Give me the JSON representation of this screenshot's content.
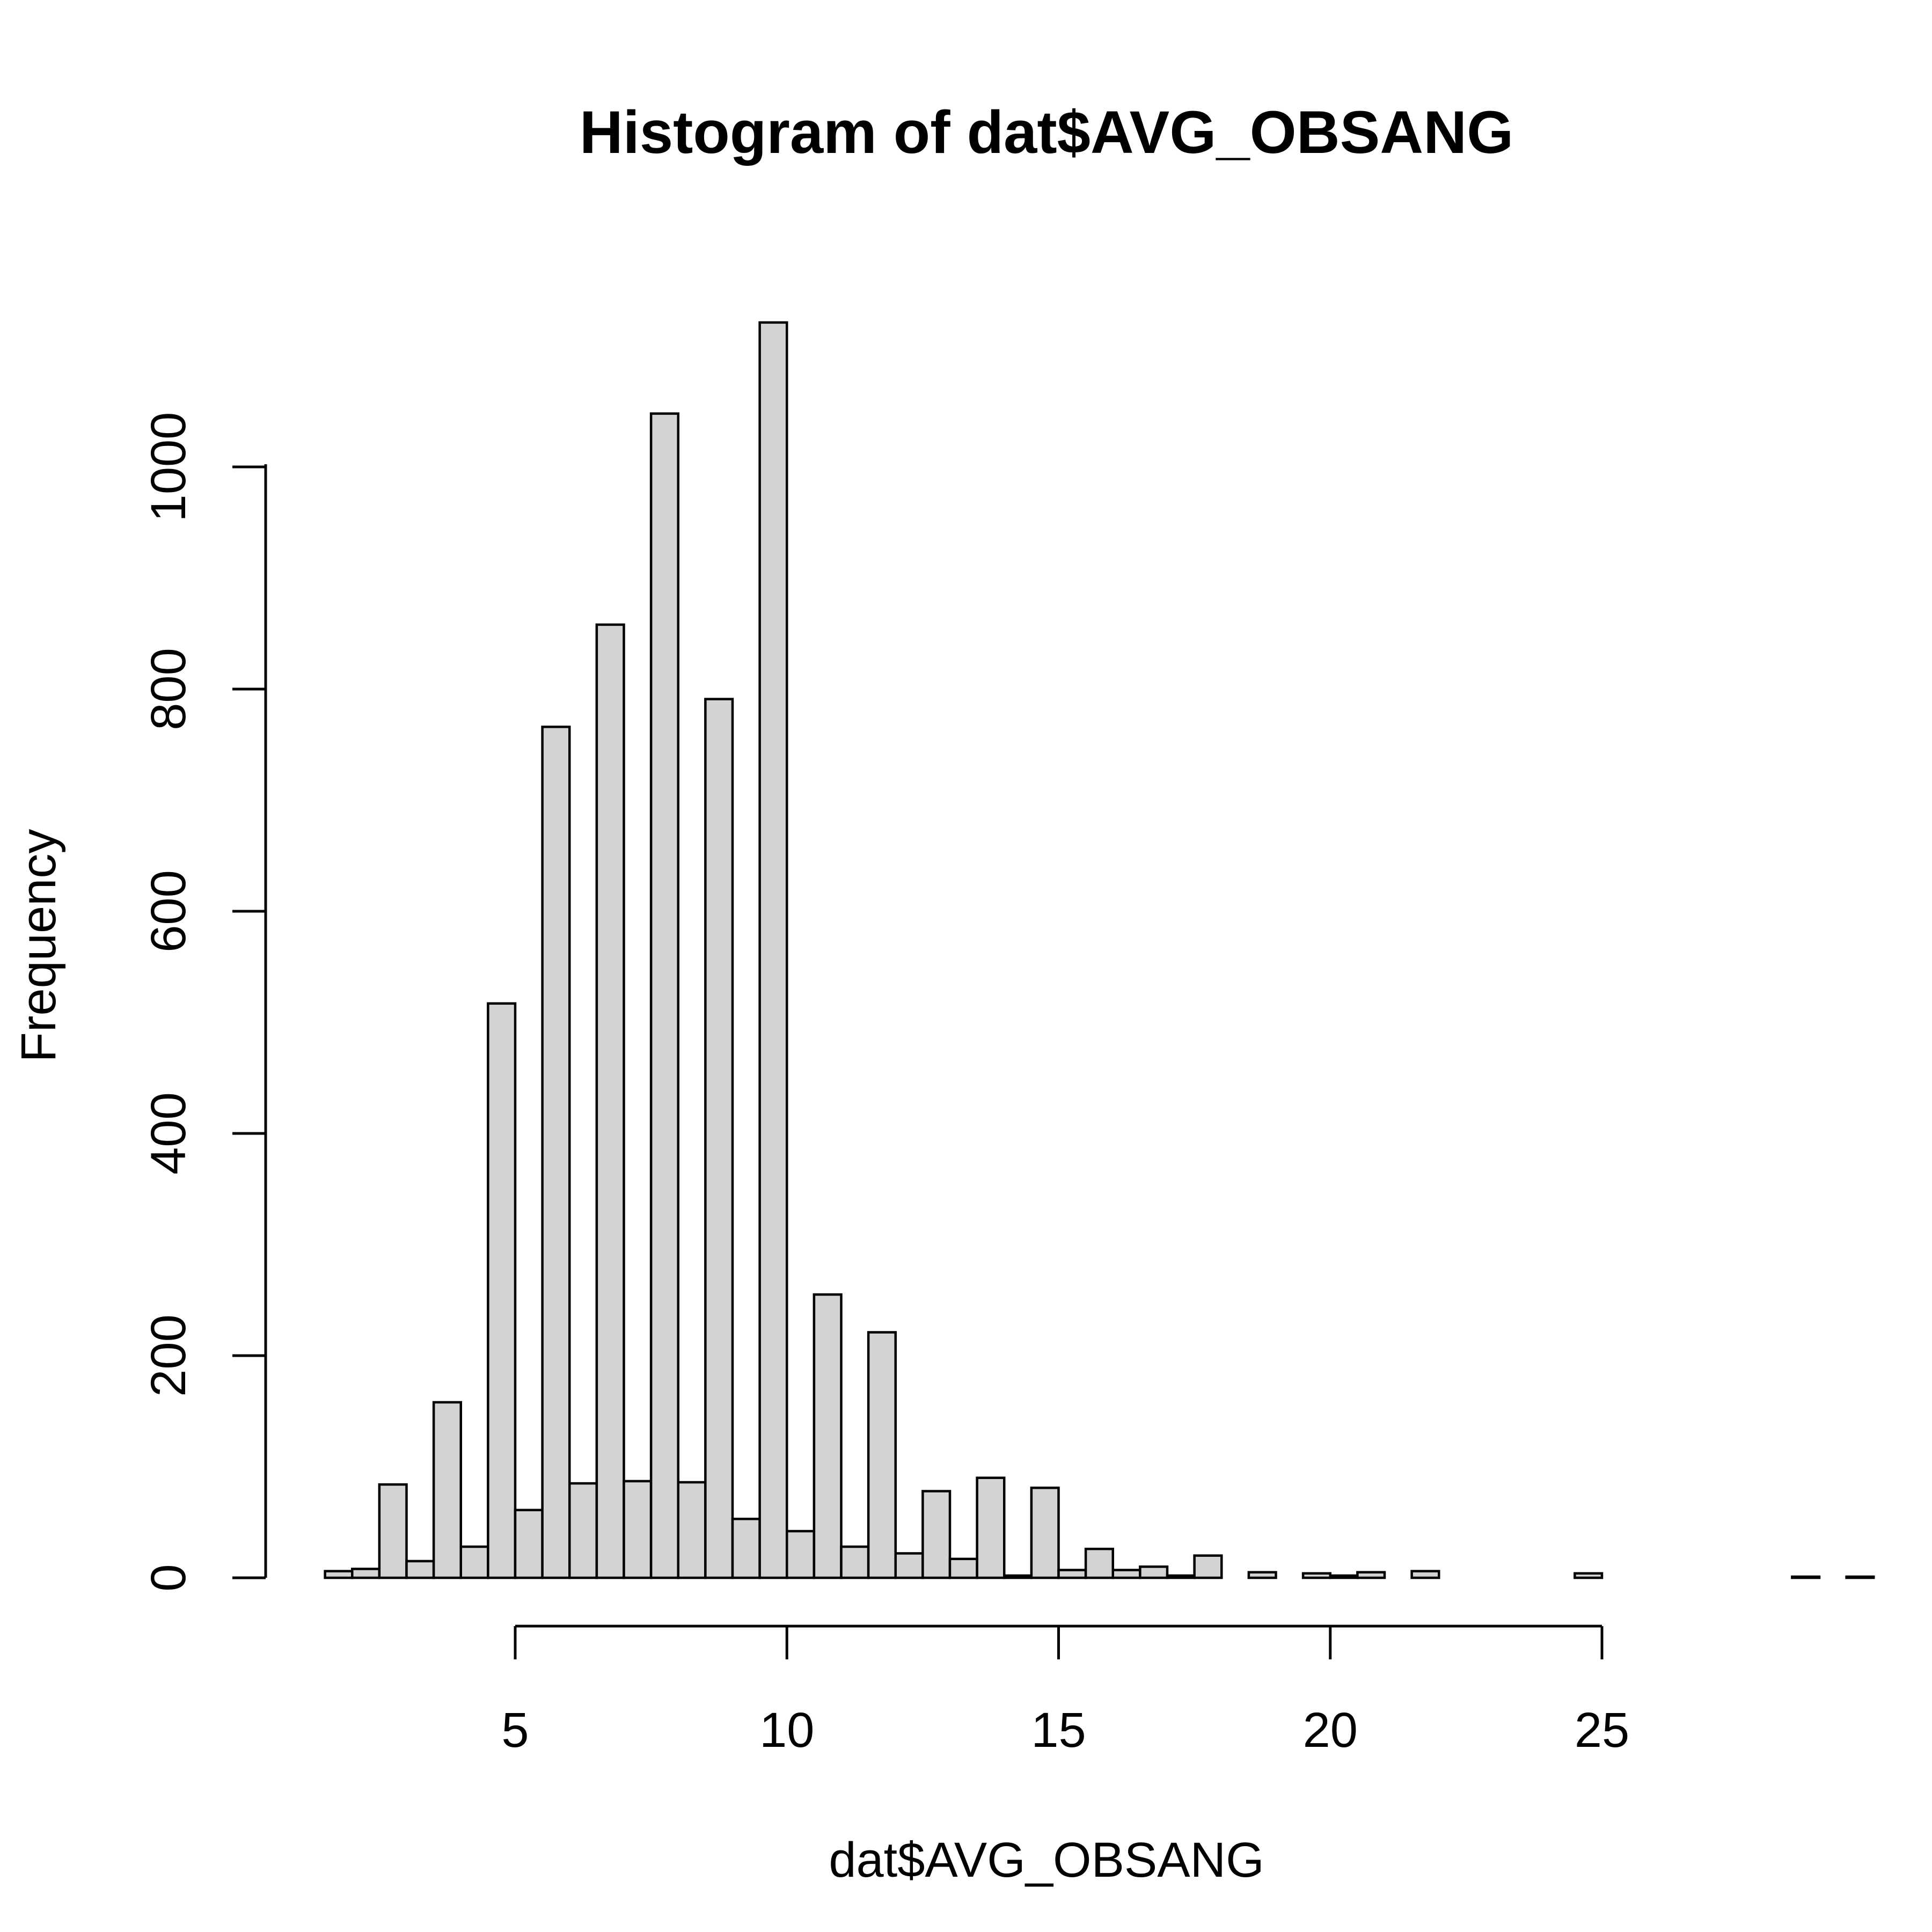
{
  "chart_data": {
    "type": "bar",
    "title": "Histogram of dat$AVG_OBSANG",
    "xlabel": "dat$AVG_OBSANG",
    "ylabel": "Frequency",
    "bin_width": 0.5,
    "bin_edges_start": 1.5,
    "x_axis_range": [
      5,
      25
    ],
    "x_ticks": [
      5,
      10,
      15,
      20,
      25
    ],
    "y_ticks": [
      0,
      200,
      400,
      600,
      800,
      1000
    ],
    "ylim": [
      0,
      1130
    ],
    "grid": false,
    "bar_fill": "#d3d3d3",
    "bar_stroke": "#000000",
    "values": [
      6,
      8,
      84,
      15,
      158,
      28,
      517,
      61,
      766,
      85,
      858,
      87,
      1048,
      86,
      791,
      53,
      1130,
      42,
      255,
      28,
      221,
      22,
      78,
      17,
      90,
      2,
      81,
      7,
      26,
      7,
      10,
      2,
      20,
      0,
      5,
      0,
      4,
      2,
      5,
      0,
      6,
      0,
      0,
      0,
      0,
      0,
      4,
      0,
      0,
      0,
      0,
      0,
      0,
      0,
      1,
      0,
      1
    ]
  }
}
